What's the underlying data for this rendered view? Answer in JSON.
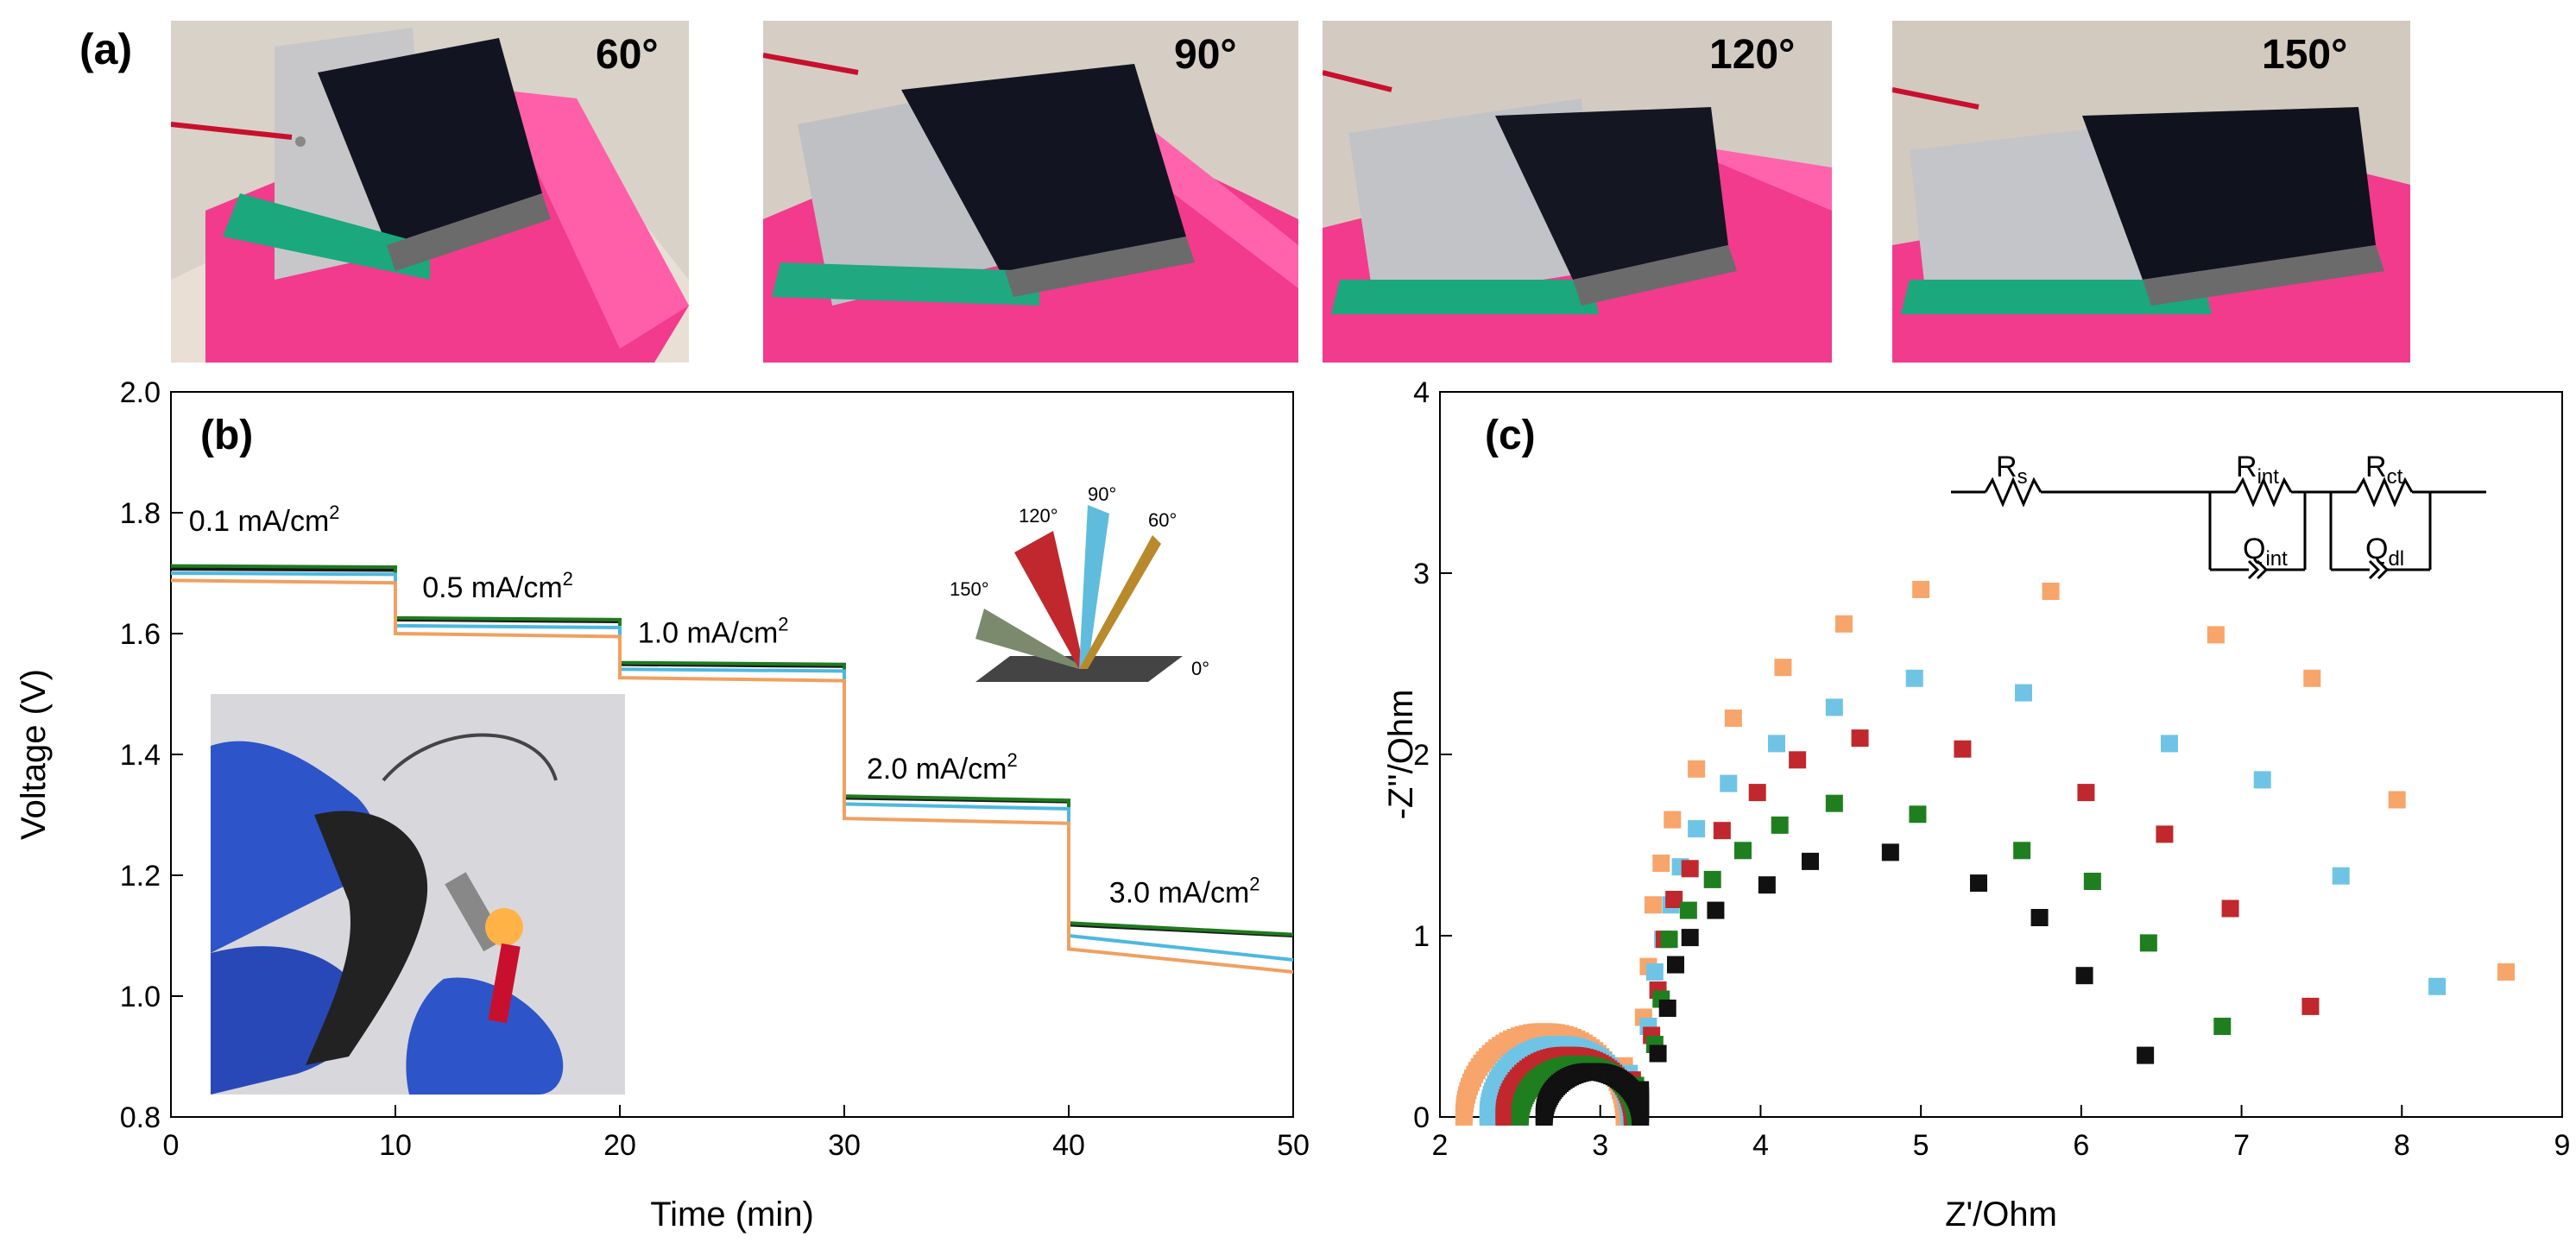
{
  "panel_a": {
    "label": "(a)",
    "photos": [
      {
        "angle": "60°"
      },
      {
        "angle": "90°"
      },
      {
        "angle": "120°"
      },
      {
        "angle": "150°"
      }
    ]
  },
  "chart_data": [
    {
      "id": "b",
      "panel_label": "(b)",
      "type": "line",
      "xlabel": "Time (min)",
      "ylabel": "Voltage (V)",
      "xlim": [
        0,
        50
      ],
      "ylim": [
        0.8,
        2.0
      ],
      "xticks": [
        0,
        10,
        20,
        30,
        40,
        50
      ],
      "yticks": [
        0.8,
        1.0,
        1.2,
        1.4,
        1.6,
        1.8,
        2.0
      ],
      "annotations": [
        {
          "text": "0.1 mA/cm",
          "sup": "2",
          "x": 0.8,
          "y": 1.77
        },
        {
          "text": "0.5 mA/cm",
          "sup": "2",
          "x": 11.2,
          "y": 1.66
        },
        {
          "text": "1.0 mA/cm",
          "sup": "2",
          "x": 20.8,
          "y": 1.585
        },
        {
          "text": "2.0 mA/cm",
          "sup": "2",
          "x": 31.0,
          "y": 1.36
        },
        {
          "text": "3.0 mA/cm",
          "sup": "2",
          "x": 41.8,
          "y": 1.155
        }
      ],
      "inset_angles": [
        "120°",
        "90°",
        "60°",
        "150°",
        "0°"
      ],
      "series": [
        {
          "name": "0°",
          "color": "#1a1a1a",
          "segments": [
            [
              1.707,
              1.705
            ],
            [
              1.623,
              1.62
            ],
            [
              1.549,
              1.546
            ],
            [
              1.328,
              1.322
            ],
            [
              1.118,
              1.1
            ]
          ]
        },
        {
          "name": "60°",
          "color": "#1f7a1f",
          "segments": [
            [
              1.712,
              1.71
            ],
            [
              1.626,
              1.623
            ],
            [
              1.552,
              1.549
            ],
            [
              1.331,
              1.324
            ],
            [
              1.121,
              1.102
            ]
          ]
        },
        {
          "name": "90°",
          "color": "#4db8e0",
          "segments": [
            [
              1.7,
              1.698
            ],
            [
              1.613,
              1.61
            ],
            [
              1.541,
              1.538
            ],
            [
              1.318,
              1.31
            ],
            [
              1.1,
              1.06
            ]
          ]
        },
        {
          "name": "150°",
          "color": "#f0a060",
          "segments": [
            [
              1.688,
              1.684
            ],
            [
              1.6,
              1.595
            ],
            [
              1.527,
              1.522
            ],
            [
              1.294,
              1.286
            ],
            [
              1.078,
              1.04
            ]
          ]
        }
      ]
    },
    {
      "id": "c",
      "panel_label": "(c)",
      "type": "scatter",
      "xlabel": "Z'/Ohm",
      "ylabel": "-Z''/Ohm",
      "xlim": [
        2,
        9
      ],
      "ylim": [
        0,
        4
      ],
      "xticks": [
        2,
        3,
        4,
        5,
        6,
        7,
        8,
        9
      ],
      "yticks": [
        0,
        1,
        2,
        3,
        4
      ],
      "circuit_labels": {
        "rs": "R",
        "rs_sub": "s",
        "rint": "R",
        "rint_sub": "int",
        "rct": "R",
        "rct_sub": "ct",
        "qint": "Q",
        "qint_sub": "int",
        "qdl": "Q",
        "qdl_sub": "dl"
      },
      "series": [
        {
          "name": "150°",
          "color": "#f7a56a",
          "hf_arc": {
            "x0": 2.15,
            "x1": 3.15,
            "r": 0.47
          },
          "points": [
            [
              3.27,
              0.55
            ],
            [
              3.3,
              0.83
            ],
            [
              3.33,
              1.17
            ],
            [
              3.38,
              1.4
            ],
            [
              3.45,
              1.64
            ],
            [
              3.6,
              1.92
            ],
            [
              3.83,
              2.2
            ],
            [
              4.14,
              2.48
            ],
            [
              4.52,
              2.72
            ],
            [
              5.0,
              2.91
            ],
            [
              5.81,
              2.9
            ],
            [
              6.84,
              2.66
            ],
            [
              7.44,
              2.42
            ],
            [
              7.97,
              1.75
            ],
            [
              8.65,
              0.8
            ]
          ]
        },
        {
          "name": "90°",
          "color": "#6fc4e6",
          "hf_arc": {
            "x0": 2.3,
            "x1": 3.18,
            "r": 0.4
          },
          "points": [
            [
              3.3,
              0.5
            ],
            [
              3.34,
              0.8
            ],
            [
              3.39,
              0.98
            ],
            [
              3.44,
              1.17
            ],
            [
              3.5,
              1.38
            ],
            [
              3.6,
              1.59
            ],
            [
              3.8,
              1.84
            ],
            [
              4.1,
              2.06
            ],
            [
              4.46,
              2.26
            ],
            [
              4.96,
              2.42
            ],
            [
              5.64,
              2.34
            ],
            [
              6.55,
              2.06
            ],
            [
              7.13,
              1.86
            ],
            [
              7.62,
              1.33
            ],
            [
              8.22,
              0.72
            ]
          ]
        },
        {
          "name": "120°",
          "color": "#c0282d",
          "hf_arc": {
            "x0": 2.4,
            "x1": 3.2,
            "r": 0.34
          },
          "points": [
            [
              3.32,
              0.45
            ],
            [
              3.36,
              0.7
            ],
            [
              3.4,
              0.98
            ],
            [
              3.46,
              1.2
            ],
            [
              3.56,
              1.37
            ],
            [
              3.76,
              1.58
            ],
            [
              3.98,
              1.79
            ],
            [
              4.23,
              1.97
            ],
            [
              4.62,
              2.09
            ],
            [
              5.26,
              2.03
            ],
            [
              6.03,
              1.79
            ],
            [
              6.52,
              1.56
            ],
            [
              6.93,
              1.15
            ],
            [
              7.43,
              0.61
            ]
          ]
        },
        {
          "name": "60°",
          "color": "#1f7f1f",
          "hf_arc": {
            "x0": 2.5,
            "x1": 3.22,
            "r": 0.29
          },
          "points": [
            [
              3.34,
              0.4
            ],
            [
              3.38,
              0.65
            ],
            [
              3.43,
              0.98
            ],
            [
              3.55,
              1.14
            ],
            [
              3.7,
              1.31
            ],
            [
              3.89,
              1.47
            ],
            [
              4.12,
              1.61
            ],
            [
              4.46,
              1.73
            ],
            [
              4.98,
              1.67
            ],
            [
              5.63,
              1.47
            ],
            [
              6.07,
              1.3
            ],
            [
              6.42,
              0.96
            ],
            [
              6.88,
              0.5
            ]
          ]
        },
        {
          "name": "0°",
          "color": "#111111",
          "hf_arc": {
            "x0": 2.65,
            "x1": 3.25,
            "r": 0.25
          },
          "points": [
            [
              3.36,
              0.35
            ],
            [
              3.42,
              0.6
            ],
            [
              3.47,
              0.84
            ],
            [
              3.56,
              0.99
            ],
            [
              3.72,
              1.14
            ],
            [
              4.04,
              1.28
            ],
            [
              4.31,
              1.41
            ],
            [
              4.81,
              1.46
            ],
            [
              5.36,
              1.29
            ],
            [
              5.74,
              1.1
            ],
            [
              6.02,
              0.78
            ],
            [
              6.4,
              0.34
            ]
          ]
        }
      ]
    }
  ]
}
